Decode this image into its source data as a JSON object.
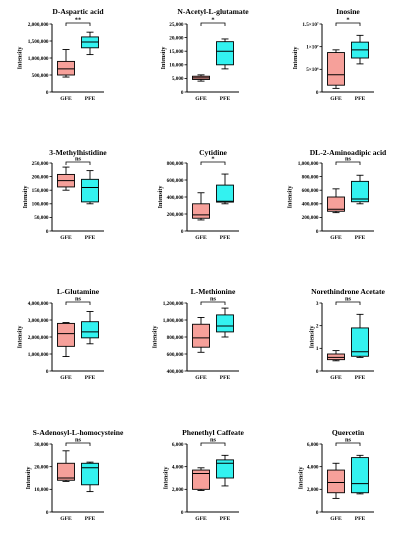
{
  "colors": {
    "GFE": "#f6a09a",
    "PFE": "#33f2f0",
    "stroke": "#000000"
  },
  "chart_data": [
    {
      "type": "box",
      "title": "D-Aspartic acid",
      "ylabel": "Intensity",
      "ylim": [
        0,
        2000000
      ],
      "ticks": [
        0,
        500000,
        1000000,
        1500000,
        2000000
      ],
      "tick_labels": [
        "0",
        "500,000",
        "1,000,000",
        "1,500,000",
        "2,000,000"
      ],
      "significance": "**",
      "categories": [
        "GFE",
        "PFE"
      ],
      "boxes": [
        {
          "group": "GFE",
          "min": 440000,
          "q1": 500000,
          "median": 680000,
          "q3": 900000,
          "max": 1250000
        },
        {
          "group": "PFE",
          "min": 1100000,
          "q1": 1300000,
          "median": 1470000,
          "q3": 1620000,
          "max": 1760000
        }
      ]
    },
    {
      "type": "box",
      "title": "N-Acetyl-L-glutamate",
      "ylabel": "Intensity",
      "ylim": [
        0,
        25000
      ],
      "ticks": [
        0,
        5000,
        10000,
        15000,
        20000,
        25000
      ],
      "tick_labels": [
        "0",
        "5,000",
        "10,000",
        "15,000",
        "20,000",
        "25,000"
      ],
      "significance": "*",
      "categories": [
        "GFE",
        "PFE"
      ],
      "boxes": [
        {
          "group": "GFE",
          "min": 4000,
          "q1": 4600,
          "median": 5200,
          "q3": 5800,
          "max": 6300
        },
        {
          "group": "PFE",
          "min": 8500,
          "q1": 10000,
          "median": 15000,
          "q3": 18500,
          "max": 19500
        }
      ]
    },
    {
      "type": "box",
      "title": "Inosine",
      "ylabel": "Intensity",
      "ylim": [
        0,
        15000000
      ],
      "ticks": [
        0,
        5000000,
        10000000,
        15000000
      ],
      "tick_labels": [
        "0",
        "5×10⁶",
        "1×10⁷",
        "1.5×10⁷"
      ],
      "significance": "*",
      "categories": [
        "GFE",
        "PFE"
      ],
      "boxes": [
        {
          "group": "GFE",
          "min": 800000,
          "q1": 1500000,
          "median": 3800000,
          "q3": 8700000,
          "max": 9300000
        },
        {
          "group": "PFE",
          "min": 6200000,
          "q1": 7500000,
          "median": 9300000,
          "q3": 11000000,
          "max": 12500000
        }
      ]
    },
    {
      "type": "box",
      "title": "3-Methylhistidine",
      "ylabel": "Intensity",
      "ylim": [
        0,
        250000
      ],
      "ticks": [
        0,
        50000,
        100000,
        150000,
        200000,
        250000
      ],
      "tick_labels": [
        "0",
        "50,000",
        "100,000",
        "150,000",
        "200,000",
        "250,000"
      ],
      "significance": "ns",
      "categories": [
        "GFE",
        "PFE"
      ],
      "boxes": [
        {
          "group": "GFE",
          "min": 150000,
          "q1": 162000,
          "median": 185000,
          "q3": 208000,
          "max": 235000
        },
        {
          "group": "PFE",
          "min": 100000,
          "q1": 107000,
          "median": 160000,
          "q3": 190000,
          "max": 222000
        }
      ]
    },
    {
      "type": "box",
      "title": "Cytidine",
      "ylabel": "Intensity",
      "ylim": [
        0,
        800000
      ],
      "ticks": [
        0,
        200000,
        400000,
        600000,
        800000
      ],
      "tick_labels": [
        "0",
        "200,000",
        "400,000",
        "600,000",
        "800,000"
      ],
      "significance": "*",
      "categories": [
        "GFE",
        "PFE"
      ],
      "boxes": [
        {
          "group": "GFE",
          "min": 130000,
          "q1": 150000,
          "median": 190000,
          "q3": 320000,
          "max": 450000
        },
        {
          "group": "PFE",
          "min": 320000,
          "q1": 340000,
          "median": 350000,
          "q3": 540000,
          "max": 670000
        }
      ]
    },
    {
      "type": "box",
      "title": "DL-2-Aminoadipic acid",
      "ylabel": "Intensity",
      "ylim": [
        0,
        1000000
      ],
      "ticks": [
        0,
        200000,
        400000,
        600000,
        800000,
        1000000
      ],
      "tick_labels": [
        "0",
        "200,000",
        "400,000",
        "600,000",
        "800,000",
        "1,000,000"
      ],
      "significance": "ns",
      "categories": [
        "GFE",
        "PFE"
      ],
      "boxes": [
        {
          "group": "GFE",
          "min": 270000,
          "q1": 290000,
          "median": 320000,
          "q3": 500000,
          "max": 620000
        },
        {
          "group": "PFE",
          "min": 400000,
          "q1": 430000,
          "median": 470000,
          "q3": 730000,
          "max": 820000
        }
      ]
    },
    {
      "type": "box",
      "title": "L-Glutamine",
      "ylabel": "Intensity",
      "ylim": [
        0,
        4000000
      ],
      "ticks": [
        0,
        1000000,
        2000000,
        3000000,
        4000000
      ],
      "tick_labels": [
        "0",
        "1,000,000",
        "2,000,000",
        "3,000,000",
        "4,000,000"
      ],
      "significance": "ns",
      "categories": [
        "GFE",
        "PFE"
      ],
      "boxes": [
        {
          "group": "GFE",
          "min": 850000,
          "q1": 1450000,
          "median": 2200000,
          "q3": 2800000,
          "max": 2850000
        },
        {
          "group": "PFE",
          "min": 1600000,
          "q1": 1950000,
          "median": 2300000,
          "q3": 2900000,
          "max": 3500000
        }
      ]
    },
    {
      "type": "box",
      "title": "L-Methionine",
      "ylabel": "Intensity",
      "ylim": [
        400000,
        1200000
      ],
      "ticks": [
        400000,
        600000,
        800000,
        1000000,
        1200000
      ],
      "tick_labels": [
        "400,000",
        "600,000",
        "800,000",
        "1,000,000",
        "1,200,000"
      ],
      "significance": "ns",
      "categories": [
        "GFE",
        "PFE"
      ],
      "boxes": [
        {
          "group": "GFE",
          "min": 620000,
          "q1": 680000,
          "median": 790000,
          "q3": 950000,
          "max": 1030000
        },
        {
          "group": "PFE",
          "min": 800000,
          "q1": 860000,
          "median": 930000,
          "q3": 1060000,
          "max": 1140000
        }
      ]
    },
    {
      "type": "box",
      "title": "Norethindrone Acetate",
      "ylabel": "Intensity",
      "ylim": [
        0,
        3
      ],
      "ticks": [
        0,
        1,
        2,
        3
      ],
      "tick_labels": [
        "0",
        "1",
        "2",
        "3"
      ],
      "significance": "ns",
      "categories": [
        "GFE",
        "PFE"
      ],
      "boxes": [
        {
          "group": "GFE",
          "min": 0.45,
          "q1": 0.5,
          "median": 0.6,
          "q3": 0.75,
          "max": 0.9
        },
        {
          "group": "PFE",
          "min": 0.6,
          "q1": 0.65,
          "median": 0.85,
          "q3": 1.9,
          "max": 2.5
        }
      ]
    },
    {
      "type": "box",
      "title": "S-Adenosyl-L-homocysteine",
      "ylabel": "Intensity",
      "ylim": [
        0,
        30000
      ],
      "ticks": [
        0,
        10000,
        20000,
        30000
      ],
      "tick_labels": [
        "0",
        "10,000",
        "20,000",
        "30,000"
      ],
      "significance": "ns",
      "categories": [
        "GFE",
        "PFE"
      ],
      "boxes": [
        {
          "group": "GFE",
          "min": 13500,
          "q1": 14000,
          "median": 15000,
          "q3": 21500,
          "max": 27000
        },
        {
          "group": "PFE",
          "min": 9000,
          "q1": 12000,
          "median": 19500,
          "q3": 21500,
          "max": 22000
        }
      ]
    },
    {
      "type": "box",
      "title": "Phenethyl Caffeate",
      "ylabel": "Intensity",
      "ylim": [
        0,
        6000
      ],
      "ticks": [
        0,
        2000,
        4000,
        6000
      ],
      "tick_labels": [
        "0",
        "2,000",
        "4,000",
        "6,000"
      ],
      "significance": "ns",
      "categories": [
        "GFE",
        "PFE"
      ],
      "boxes": [
        {
          "group": "GFE",
          "min": 1900,
          "q1": 2000,
          "median": 3400,
          "q3": 3700,
          "max": 3900
        },
        {
          "group": "PFE",
          "min": 2300,
          "q1": 3000,
          "median": 4300,
          "q3": 4600,
          "max": 5000
        }
      ]
    },
    {
      "type": "box",
      "title": "Quercetin",
      "ylabel": "Intensity",
      "ylim": [
        0,
        6000
      ],
      "ticks": [
        0,
        2000,
        4000,
        6000
      ],
      "tick_labels": [
        "0",
        "2,000",
        "4,000",
        "6,000"
      ],
      "significance": "ns",
      "categories": [
        "GFE",
        "PFE"
      ],
      "boxes": [
        {
          "group": "GFE",
          "min": 1200,
          "q1": 1700,
          "median": 2600,
          "q3": 3700,
          "max": 4300
        },
        {
          "group": "PFE",
          "min": 1600,
          "q1": 1700,
          "median": 2500,
          "q3": 4800,
          "max": 5000
        }
      ]
    }
  ]
}
